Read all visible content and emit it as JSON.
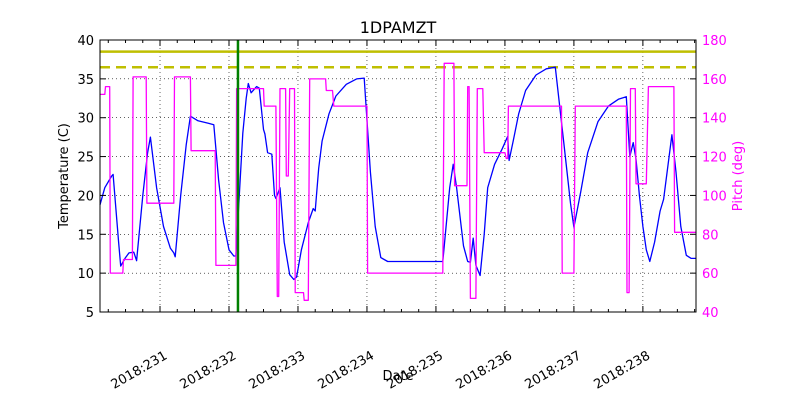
{
  "chart_data": {
    "type": "line",
    "title": "1DPAMZT",
    "xlabel": "Date",
    "ylabel": "Temperature (C)",
    "ylabel_right": "Pitch (deg)",
    "xlim": [
      230.13,
      238.77
    ],
    "ylim": [
      5,
      40
    ],
    "ylim_right": [
      40,
      180
    ],
    "x_ticks": [
      231,
      232,
      233,
      234,
      235,
      236,
      237,
      238
    ],
    "x_tick_labels": [
      "2018:231",
      "2018:232",
      "2018:233",
      "2018:234",
      "2018:235",
      "2018:236",
      "2018:237",
      "2018:238"
    ],
    "y_ticks": [
      5,
      10,
      15,
      20,
      25,
      30,
      35,
      40
    ],
    "y_tick_labels": [
      "5",
      "10",
      "15",
      "20",
      "25",
      "30",
      "35",
      "40"
    ],
    "y_ticks_right": [
      40,
      60,
      80,
      100,
      120,
      140,
      160,
      180
    ],
    "y_tick_labels_right": [
      "40",
      "60",
      "80",
      "100",
      "120",
      "140",
      "160",
      "180"
    ],
    "grid": true,
    "colors": {
      "temperature": "#0000ff",
      "pitch": "#ff00ff",
      "planning_limit": "#bfbf00",
      "caution_limit": "#bfbf00",
      "now_marker": "#008000",
      "right_axis": "#ff00ff"
    },
    "reference_lines": [
      {
        "name": "planning limit",
        "y": 38.5,
        "style": "solid",
        "color": "#bfbf00"
      },
      {
        "name": "caution limit",
        "y": 36.5,
        "style": "dashed",
        "color": "#bfbf00"
      }
    ],
    "vertical_markers": [
      {
        "name": "now",
        "x": 232.13,
        "color": "#008000"
      }
    ],
    "series": [
      {
        "name": "Temperature",
        "axis": "left",
        "color": "#0000ff",
        "points": [
          [
            230.13,
            18.8
          ],
          [
            230.2,
            21.0
          ],
          [
            230.3,
            22.5
          ],
          [
            230.32,
            22.7
          ],
          [
            230.4,
            14.0
          ],
          [
            230.43,
            10.9
          ],
          [
            230.5,
            12.0
          ],
          [
            230.55,
            12.6
          ],
          [
            230.62,
            12.7
          ],
          [
            230.66,
            11.6
          ],
          [
            230.75,
            20.0
          ],
          [
            230.82,
            25.5
          ],
          [
            230.86,
            27.5
          ],
          [
            230.95,
            21.0
          ],
          [
            231.05,
            16.0
          ],
          [
            231.15,
            13.2
          ],
          [
            231.2,
            12.6
          ],
          [
            231.22,
            12.1
          ],
          [
            231.3,
            20.0
          ],
          [
            231.38,
            26.5
          ],
          [
            231.44,
            30.2
          ],
          [
            231.55,
            29.6
          ],
          [
            231.7,
            29.3
          ],
          [
            231.78,
            29.1
          ],
          [
            231.85,
            22.0
          ],
          [
            231.92,
            16.5
          ],
          [
            232.0,
            13.0
          ],
          [
            232.07,
            12.2
          ],
          [
            232.1,
            12.2
          ],
          [
            232.15,
            20.0
          ],
          [
            232.2,
            28.0
          ],
          [
            232.25,
            32.5
          ],
          [
            232.28,
            34.4
          ],
          [
            232.32,
            33.2
          ],
          [
            232.4,
            34.0
          ],
          [
            232.44,
            33.8
          ],
          [
            232.5,
            28.5
          ],
          [
            232.52,
            27.9
          ],
          [
            232.56,
            25.5
          ],
          [
            232.62,
            25.3
          ],
          [
            232.66,
            20.0
          ],
          [
            232.68,
            19.6
          ],
          [
            232.74,
            21.0
          ],
          [
            232.8,
            14.0
          ],
          [
            232.88,
            9.8
          ],
          [
            232.94,
            9.2
          ],
          [
            232.98,
            9.5
          ],
          [
            233.05,
            13.0
          ],
          [
            233.15,
            16.5
          ],
          [
            233.22,
            18.3
          ],
          [
            233.25,
            18.0
          ],
          [
            233.3,
            23.5
          ],
          [
            233.35,
            27.0
          ],
          [
            233.45,
            30.5
          ],
          [
            233.55,
            32.8
          ],
          [
            233.7,
            34.3
          ],
          [
            233.85,
            35.0
          ],
          [
            233.96,
            35.1
          ],
          [
            234.05,
            23.0
          ],
          [
            234.12,
            16.0
          ],
          [
            234.2,
            12.0
          ],
          [
            234.3,
            11.5
          ],
          [
            234.6,
            11.5
          ],
          [
            234.9,
            11.5
          ],
          [
            235.1,
            11.5
          ],
          [
            235.2,
            21.0
          ],
          [
            235.25,
            24.0
          ],
          [
            235.3,
            21.0
          ],
          [
            235.4,
            13.5
          ],
          [
            235.46,
            11.5
          ],
          [
            235.5,
            11.4
          ],
          [
            235.54,
            14.5
          ],
          [
            235.58,
            11.0
          ],
          [
            235.64,
            9.7
          ],
          [
            235.7,
            15.0
          ],
          [
            235.75,
            21.0
          ],
          [
            235.85,
            24.0
          ],
          [
            235.96,
            26.0
          ],
          [
            236.04,
            27.6
          ],
          [
            236.06,
            24.5
          ],
          [
            236.12,
            27.0
          ],
          [
            236.2,
            30.5
          ],
          [
            236.3,
            33.5
          ],
          [
            236.45,
            35.5
          ],
          [
            236.6,
            36.3
          ],
          [
            236.73,
            36.5
          ],
          [
            236.85,
            27.0
          ],
          [
            236.95,
            19.0
          ],
          [
            237.0,
            15.9
          ],
          [
            237.1,
            20.5
          ],
          [
            237.2,
            25.5
          ],
          [
            237.35,
            29.5
          ],
          [
            237.5,
            31.5
          ],
          [
            237.65,
            32.4
          ],
          [
            237.76,
            32.7
          ],
          [
            237.81,
            25.0
          ],
          [
            237.86,
            26.8
          ],
          [
            237.9,
            24.7
          ],
          [
            237.95,
            20.0
          ],
          [
            238.0,
            16.0
          ],
          [
            238.05,
            13.0
          ],
          [
            238.1,
            11.5
          ],
          [
            238.17,
            14.0
          ],
          [
            238.25,
            18.0
          ],
          [
            238.3,
            19.5
          ],
          [
            238.38,
            25.0
          ],
          [
            238.42,
            27.8
          ],
          [
            238.48,
            23.0
          ],
          [
            238.55,
            16.0
          ],
          [
            238.63,
            12.3
          ],
          [
            238.7,
            11.9
          ],
          [
            238.77,
            11.9
          ]
        ]
      },
      {
        "name": "Pitch",
        "axis": "right",
        "color": "#ff00ff",
        "points": [
          [
            230.13,
            152
          ],
          [
            230.2,
            152
          ],
          [
            230.21,
            156
          ],
          [
            230.27,
            156
          ],
          [
            230.28,
            60
          ],
          [
            230.46,
            60
          ],
          [
            230.47,
            67
          ],
          [
            230.6,
            67
          ],
          [
            230.61,
            161
          ],
          [
            230.8,
            161
          ],
          [
            230.81,
            96
          ],
          [
            231.2,
            96
          ],
          [
            231.21,
            161
          ],
          [
            231.44,
            161
          ],
          [
            231.45,
            123
          ],
          [
            231.8,
            123
          ],
          [
            231.81,
            64
          ],
          [
            232.1,
            64
          ],
          [
            232.11,
            155
          ],
          [
            232.5,
            155
          ],
          [
            232.51,
            146
          ],
          [
            232.68,
            146
          ],
          [
            232.7,
            48
          ],
          [
            232.72,
            48
          ],
          [
            232.74,
            155
          ],
          [
            232.82,
            155
          ],
          [
            232.83,
            110
          ],
          [
            232.86,
            110
          ],
          [
            232.88,
            155
          ],
          [
            232.95,
            155
          ],
          [
            232.96,
            50
          ],
          [
            233.08,
            50
          ],
          [
            233.09,
            46
          ],
          [
            233.15,
            46
          ],
          [
            233.17,
            160
          ],
          [
            233.4,
            160
          ],
          [
            233.41,
            154
          ],
          [
            233.5,
            154
          ],
          [
            233.52,
            146
          ],
          [
            234.0,
            146
          ],
          [
            234.01,
            60
          ],
          [
            235.1,
            60
          ],
          [
            235.12,
            168
          ],
          [
            235.26,
            168
          ],
          [
            235.27,
            105
          ],
          [
            235.45,
            105
          ],
          [
            235.46,
            156
          ],
          [
            235.48,
            156
          ],
          [
            235.5,
            47
          ],
          [
            235.58,
            47
          ],
          [
            235.6,
            155
          ],
          [
            235.68,
            155
          ],
          [
            235.7,
            122
          ],
          [
            236.0,
            122
          ],
          [
            236.02,
            119
          ],
          [
            236.04,
            119
          ],
          [
            236.05,
            146
          ],
          [
            236.82,
            146
          ],
          [
            236.83,
            60
          ],
          [
            237.0,
            60
          ],
          [
            237.02,
            146
          ],
          [
            237.76,
            146
          ],
          [
            237.77,
            50
          ],
          [
            237.8,
            50
          ],
          [
            237.82,
            155
          ],
          [
            237.89,
            155
          ],
          [
            237.9,
            106
          ],
          [
            238.05,
            106
          ],
          [
            238.08,
            156
          ],
          [
            238.45,
            156
          ],
          [
            238.46,
            81
          ],
          [
            238.77,
            81
          ]
        ]
      }
    ]
  }
}
